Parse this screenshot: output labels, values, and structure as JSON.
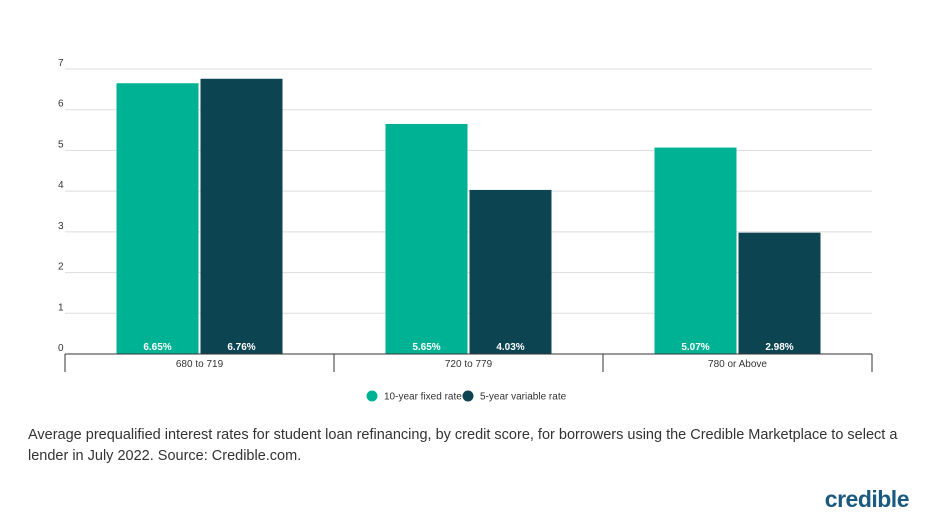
{
  "chart_data": {
    "type": "bar",
    "categories": [
      "680 to 719",
      "720 to 779",
      "780 or Above"
    ],
    "series": [
      {
        "name": "10-year fixed rate",
        "values": [
          6.65,
          5.65,
          5.07
        ],
        "labels": [
          "6.65%",
          "5.65%",
          "5.07%"
        ],
        "color": "#00b294"
      },
      {
        "name": "5-year variable rate",
        "values": [
          6.76,
          4.03,
          2.98
        ],
        "labels": [
          "6.76%",
          "4.03%",
          "2.98%"
        ],
        "color": "#0d4452"
      }
    ],
    "ylim": [
      0,
      7
    ],
    "yticks": [
      "0",
      "1",
      "2",
      "3",
      "4",
      "5",
      "6",
      "7"
    ],
    "grid": true,
    "legend_position": "bottom-center"
  },
  "caption": "Average prequalified interest rates for student loan refinancing, by credit score, for borrowers using the Credible Marketplace to select a lender in July 2022. Source: Credible.com.",
  "logo": "credible"
}
